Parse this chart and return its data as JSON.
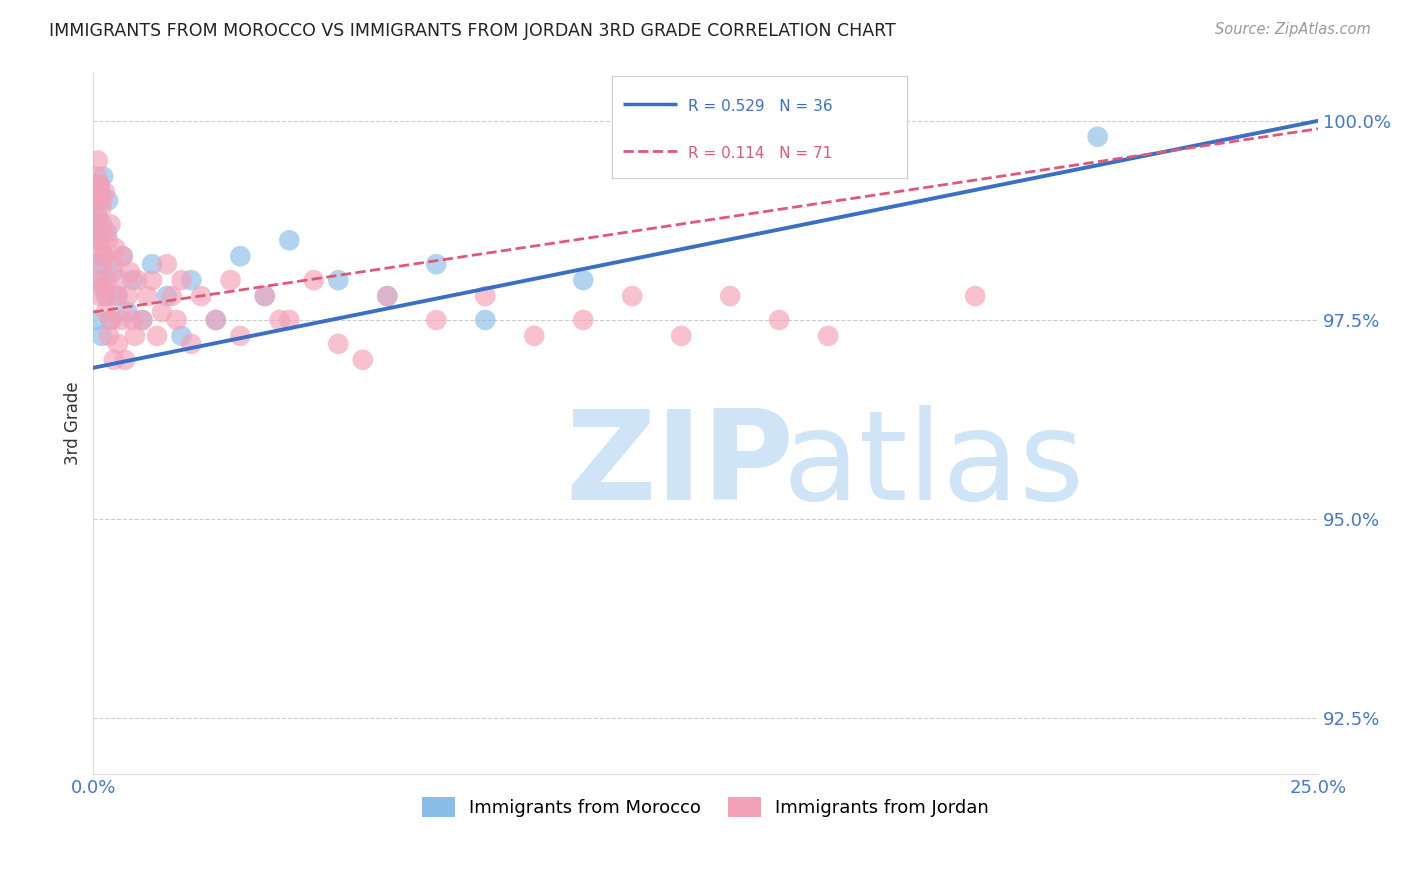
{
  "title": "IMMIGRANTS FROM MOROCCO VS IMMIGRANTS FROM JORDAN 3RD GRADE CORRELATION CHART",
  "source_text": "Source: ZipAtlas.com",
  "ylabel": "3rd Grade",
  "xlim": [
    0.0,
    25.0
  ],
  "ylim": [
    91.8,
    100.6
  ],
  "x_ticks": [
    0.0,
    5.0,
    10.0,
    15.0,
    20.0,
    25.0
  ],
  "x_tick_labels": [
    "0.0%",
    "",
    "",
    "",
    "",
    "25.0%"
  ],
  "y_ticks": [
    92.5,
    95.0,
    97.5,
    100.0
  ],
  "y_tick_labels": [
    "92.5%",
    "95.0%",
    "97.5%",
    "100.0%"
  ],
  "morocco_R": 0.529,
  "morocco_N": 36,
  "jordan_R": 0.114,
  "jordan_N": 71,
  "morocco_color": "#8abde8",
  "jordan_color": "#f4a0b8",
  "morocco_line_color": "#3a6fc4",
  "jordan_line_color": "#e05878",
  "watermark_zip": "ZIP",
  "watermark_atlas": "atlas",
  "watermark_color": "#d0e4f7",
  "legend_morocco": "Immigrants from Morocco",
  "legend_jordan": "Immigrants from Jordan",
  "morocco_line_x0": 0.0,
  "morocco_line_y0": 96.9,
  "morocco_line_x1": 25.0,
  "morocco_line_y1": 100.0,
  "jordan_line_x0": 0.0,
  "jordan_line_y0": 97.6,
  "jordan_line_x1": 25.0,
  "jordan_line_y1": 99.9,
  "morocco_scatter_x": [
    0.05,
    0.07,
    0.08,
    0.1,
    0.12,
    0.13,
    0.15,
    0.16,
    0.17,
    0.18,
    0.2,
    0.22,
    0.25,
    0.28,
    0.3,
    0.35,
    0.4,
    0.5,
    0.6,
    0.7,
    0.8,
    1.0,
    1.2,
    1.5,
    1.8,
    2.0,
    2.5,
    3.0,
    3.5,
    4.0,
    5.0,
    6.0,
    7.0,
    8.0,
    10.0,
    20.5
  ],
  "morocco_scatter_y": [
    97.5,
    98.2,
    98.8,
    99.0,
    99.2,
    98.5,
    99.1,
    98.0,
    97.3,
    98.7,
    99.3,
    98.3,
    97.8,
    98.6,
    99.0,
    97.5,
    98.1,
    97.8,
    98.3,
    97.6,
    98.0,
    97.5,
    98.2,
    97.8,
    97.3,
    98.0,
    97.5,
    98.3,
    97.8,
    98.5,
    98.0,
    97.8,
    98.2,
    97.5,
    98.0,
    99.8
  ],
  "jordan_scatter_x": [
    0.03,
    0.05,
    0.06,
    0.07,
    0.08,
    0.09,
    0.1,
    0.11,
    0.12,
    0.13,
    0.14,
    0.15,
    0.16,
    0.17,
    0.18,
    0.19,
    0.2,
    0.22,
    0.24,
    0.25,
    0.27,
    0.28,
    0.3,
    0.32,
    0.35,
    0.38,
    0.4,
    0.42,
    0.45,
    0.48,
    0.5,
    0.55,
    0.58,
    0.6,
    0.65,
    0.7,
    0.75,
    0.8,
    0.85,
    0.9,
    1.0,
    1.1,
    1.2,
    1.3,
    1.4,
    1.5,
    1.6,
    1.7,
    1.8,
    2.0,
    2.2,
    2.5,
    2.8,
    3.0,
    3.5,
    4.0,
    4.5,
    5.0,
    6.0,
    7.0,
    8.0,
    9.0,
    10.0,
    11.0,
    12.0,
    13.0,
    14.0,
    15.0,
    18.0,
    5.5,
    3.8
  ],
  "jordan_scatter_y": [
    99.2,
    99.0,
    98.5,
    99.3,
    98.8,
    99.5,
    98.0,
    99.1,
    98.7,
    99.2,
    97.8,
    98.4,
    98.9,
    98.2,
    99.0,
    98.6,
    97.9,
    98.3,
    99.1,
    97.6,
    98.0,
    97.8,
    98.5,
    97.3,
    98.7,
    97.5,
    98.2,
    97.0,
    98.4,
    97.8,
    97.2,
    98.0,
    97.5,
    98.3,
    97.0,
    97.8,
    98.1,
    97.5,
    97.3,
    98.0,
    97.5,
    97.8,
    98.0,
    97.3,
    97.6,
    98.2,
    97.8,
    97.5,
    98.0,
    97.2,
    97.8,
    97.5,
    98.0,
    97.3,
    97.8,
    97.5,
    98.0,
    97.2,
    97.8,
    97.5,
    97.8,
    97.3,
    97.5,
    97.8,
    97.3,
    97.8,
    97.5,
    97.3,
    97.8,
    97.0,
    97.5
  ]
}
